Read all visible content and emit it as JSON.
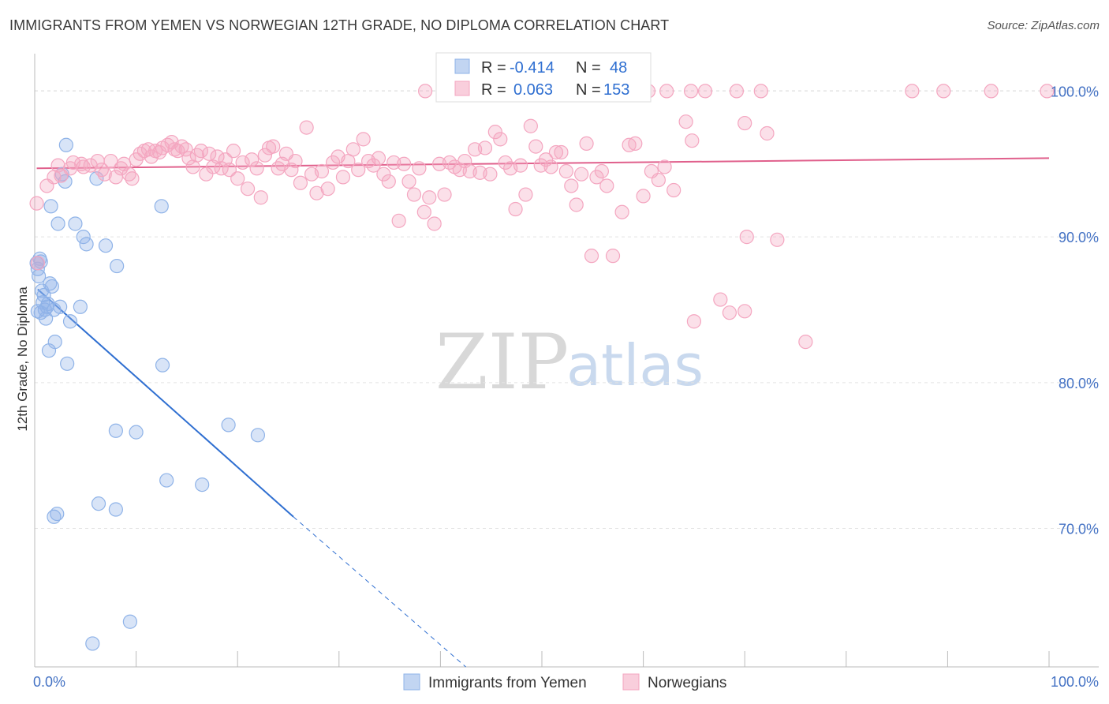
{
  "title": "IMMIGRANTS FROM YEMEN VS NORWEGIAN 12TH GRADE, NO DIPLOMA CORRELATION CHART",
  "source": "Source: ZipAtlas.com",
  "watermark": {
    "zip": "ZIP",
    "atlas": "atlas"
  },
  "legend": {
    "r_label": "R =",
    "n_label": "N =",
    "rows": [
      {
        "series": "Immigrants from Yemen",
        "r": "-0.414",
        "n": "48",
        "color": "#8fb3e8"
      },
      {
        "series": "Norwegians",
        "r": "0.063",
        "n": "153",
        "color": "#f4a6c0"
      }
    ]
  },
  "chart_data": {
    "type": "scatter",
    "ylabel": "12th Grade, No Diploma",
    "xlim": [
      0,
      100
    ],
    "ylim": [
      60.5,
      103
    ],
    "x_ticks": [
      {
        "value": 0,
        "label": "0.0%"
      },
      {
        "value": 100,
        "label": "100.0%"
      }
    ],
    "y_ticks": [
      {
        "value": 100,
        "label": "100.0%"
      },
      {
        "value": 90,
        "label": "90.0%"
      },
      {
        "value": 80,
        "label": "80.0%"
      },
      {
        "value": 70,
        "label": "70.0%"
      }
    ],
    "grid": true,
    "legend_position": "top-center",
    "series": [
      {
        "name": "Immigrants from Yemen",
        "color": "#8fb3e8",
        "line_color": "#2f6fd1",
        "trend": {
          "x0": 0.3,
          "y0": 86.4,
          "x1": 25.5,
          "y1": 70.8,
          "dash_to_x": 42.5,
          "dash_to_y": 60.5
        },
        "points": [
          [
            0.2,
            88.2
          ],
          [
            0.3,
            87.8
          ],
          [
            0.5,
            88.5
          ],
          [
            0.7,
            86.3
          ],
          [
            0.8,
            85.5
          ],
          [
            1.0,
            85.0
          ],
          [
            1.1,
            84.4
          ],
          [
            1.2,
            85.2
          ],
          [
            1.5,
            86.8
          ],
          [
            1.7,
            86.6
          ],
          [
            1.9,
            85.0
          ],
          [
            2.0,
            82.8
          ],
          [
            1.4,
            82.2
          ],
          [
            2.3,
            90.9
          ],
          [
            1.6,
            92.1
          ],
          [
            2.7,
            94.3
          ],
          [
            3.2,
            81.3
          ],
          [
            3.0,
            93.8
          ],
          [
            3.1,
            96.3
          ],
          [
            3.5,
            84.2
          ],
          [
            4.0,
            90.9
          ],
          [
            4.5,
            85.2
          ],
          [
            4.8,
            90.0
          ],
          [
            5.1,
            89.5
          ],
          [
            6.1,
            94.0
          ],
          [
            7.0,
            89.4
          ],
          [
            8.0,
            76.7
          ],
          [
            8.1,
            88.0
          ],
          [
            10.0,
            76.6
          ],
          [
            12.5,
            92.1
          ],
          [
            12.6,
            81.2
          ],
          [
            13.0,
            73.3
          ],
          [
            16.5,
            73.0
          ],
          [
            19.1,
            77.1
          ],
          [
            22.0,
            76.4
          ],
          [
            2.2,
            71.0
          ],
          [
            1.9,
            70.8
          ],
          [
            6.3,
            71.7
          ],
          [
            8.0,
            71.3
          ],
          [
            9.4,
            63.6
          ],
          [
            5.7,
            62.1
          ],
          [
            0.3,
            84.9
          ],
          [
            0.4,
            87.3
          ],
          [
            0.6,
            88.3
          ],
          [
            1.3,
            85.4
          ],
          [
            2.5,
            85.2
          ],
          [
            0.9,
            86.0
          ],
          [
            0.6,
            84.8
          ]
        ]
      },
      {
        "name": "Norwegians",
        "color": "#f4a6c0",
        "line_color": "#e0608c",
        "trend": {
          "x0": 0.2,
          "y0": 94.7,
          "x1": 100,
          "y1": 95.4
        },
        "points": [
          [
            0.2,
            92.3
          ],
          [
            0.3,
            88.2
          ],
          [
            1.2,
            93.5
          ],
          [
            1.9,
            94.1
          ],
          [
            2.3,
            94.9
          ],
          [
            2.6,
            94.2
          ],
          [
            3.5,
            94.7
          ],
          [
            3.8,
            95.1
          ],
          [
            4.6,
            95.0
          ],
          [
            4.8,
            94.8
          ],
          [
            5.5,
            94.9
          ],
          [
            6.2,
            95.2
          ],
          [
            6.6,
            94.6
          ],
          [
            6.9,
            94.3
          ],
          [
            7.5,
            95.2
          ],
          [
            8.0,
            94.1
          ],
          [
            8.5,
            94.7
          ],
          [
            8.8,
            95.0
          ],
          [
            9.3,
            94.3
          ],
          [
            9.6,
            94.0
          ],
          [
            10.0,
            95.3
          ],
          [
            10.4,
            95.7
          ],
          [
            10.8,
            95.9
          ],
          [
            11.2,
            96.0
          ],
          [
            11.5,
            95.5
          ],
          [
            11.9,
            95.9
          ],
          [
            12.3,
            95.8
          ],
          [
            12.6,
            96.1
          ],
          [
            13.1,
            96.3
          ],
          [
            13.5,
            96.5
          ],
          [
            13.8,
            96.0
          ],
          [
            14.1,
            95.9
          ],
          [
            14.5,
            96.2
          ],
          [
            14.9,
            96.0
          ],
          [
            15.2,
            95.4
          ],
          [
            15.6,
            94.8
          ],
          [
            16.0,
            95.6
          ],
          [
            16.4,
            95.9
          ],
          [
            16.9,
            94.3
          ],
          [
            17.2,
            95.7
          ],
          [
            17.6,
            94.8
          ],
          [
            18.0,
            95.5
          ],
          [
            18.4,
            94.7
          ],
          [
            18.8,
            95.3
          ],
          [
            19.2,
            94.6
          ],
          [
            19.6,
            95.9
          ],
          [
            20.0,
            94.0
          ],
          [
            20.5,
            95.1
          ],
          [
            21.0,
            93.3
          ],
          [
            21.4,
            95.3
          ],
          [
            21.9,
            94.7
          ],
          [
            22.3,
            92.7
          ],
          [
            22.7,
            95.6
          ],
          [
            23.1,
            96.1
          ],
          [
            23.5,
            96.2
          ],
          [
            24.0,
            94.7
          ],
          [
            24.4,
            95.0
          ],
          [
            24.8,
            95.7
          ],
          [
            25.3,
            94.6
          ],
          [
            25.7,
            95.2
          ],
          [
            26.2,
            93.7
          ],
          [
            26.8,
            97.5
          ],
          [
            27.3,
            94.3
          ],
          [
            27.8,
            93.0
          ],
          [
            28.3,
            94.5
          ],
          [
            28.9,
            93.3
          ],
          [
            29.4,
            95.1
          ],
          [
            29.9,
            95.5
          ],
          [
            30.4,
            94.1
          ],
          [
            30.9,
            95.2
          ],
          [
            31.4,
            96.0
          ],
          [
            31.9,
            94.6
          ],
          [
            32.4,
            96.7
          ],
          [
            32.9,
            95.2
          ],
          [
            33.4,
            94.9
          ],
          [
            33.9,
            95.4
          ],
          [
            34.4,
            94.3
          ],
          [
            34.9,
            93.8
          ],
          [
            35.4,
            95.1
          ],
          [
            35.9,
            91.1
          ],
          [
            36.4,
            95.0
          ],
          [
            36.9,
            93.8
          ],
          [
            37.4,
            92.9
          ],
          [
            37.9,
            94.7
          ],
          [
            38.4,
            91.7
          ],
          [
            38.9,
            92.7
          ],
          [
            39.4,
            90.9
          ],
          [
            39.9,
            95.0
          ],
          [
            40.4,
            92.9
          ],
          [
            40.9,
            95.1
          ],
          [
            41.4,
            94.8
          ],
          [
            41.9,
            94.6
          ],
          [
            42.4,
            95.2
          ],
          [
            42.9,
            94.5
          ],
          [
            43.4,
            96.0
          ],
          [
            43.9,
            94.4
          ],
          [
            44.4,
            96.1
          ],
          [
            44.9,
            94.3
          ],
          [
            45.4,
            97.2
          ],
          [
            45.9,
            96.7
          ],
          [
            46.4,
            95.1
          ],
          [
            46.9,
            94.7
          ],
          [
            47.4,
            91.9
          ],
          [
            47.9,
            94.9
          ],
          [
            48.4,
            92.9
          ],
          [
            48.9,
            97.6
          ],
          [
            49.4,
            96.2
          ],
          [
            49.9,
            94.9
          ],
          [
            50.4,
            95.3
          ],
          [
            50.9,
            94.8
          ],
          [
            51.4,
            95.8
          ],
          [
            51.9,
            95.8
          ],
          [
            52.4,
            94.5
          ],
          [
            52.9,
            93.5
          ],
          [
            53.4,
            92.2
          ],
          [
            53.9,
            94.3
          ],
          [
            54.4,
            96.4
          ],
          [
            54.9,
            88.7
          ],
          [
            55.4,
            94.1
          ],
          [
            55.9,
            94.5
          ],
          [
            56.4,
            93.5
          ],
          [
            57.9,
            91.7
          ],
          [
            57.0,
            88.7
          ],
          [
            58.6,
            96.3
          ],
          [
            59.2,
            96.4
          ],
          [
            60.0,
            92.8
          ],
          [
            60.8,
            94.5
          ],
          [
            61.5,
            93.9
          ],
          [
            62.1,
            94.8
          ],
          [
            63.0,
            93.2
          ],
          [
            64.2,
            97.9
          ],
          [
            64.8,
            96.6
          ],
          [
            72.2,
            97.1
          ],
          [
            70.0,
            97.8
          ],
          [
            67.6,
            85.7
          ],
          [
            68.5,
            84.8
          ],
          [
            70.2,
            90.0
          ],
          [
            73.2,
            89.8
          ],
          [
            76.0,
            82.8
          ],
          [
            70.0,
            84.9
          ],
          [
            65.0,
            84.2
          ],
          [
            38.5,
            100.0
          ],
          [
            55.9,
            100.0
          ],
          [
            60.5,
            100.0
          ],
          [
            62.3,
            100.0
          ],
          [
            64.7,
            100.0
          ],
          [
            66.1,
            100.0
          ],
          [
            69.2,
            100.0
          ],
          [
            71.6,
            100.0
          ],
          [
            86.5,
            100.0
          ],
          [
            89.6,
            100.0
          ],
          [
            94.3,
            100.0
          ],
          [
            99.8,
            100.0
          ]
        ]
      }
    ]
  }
}
